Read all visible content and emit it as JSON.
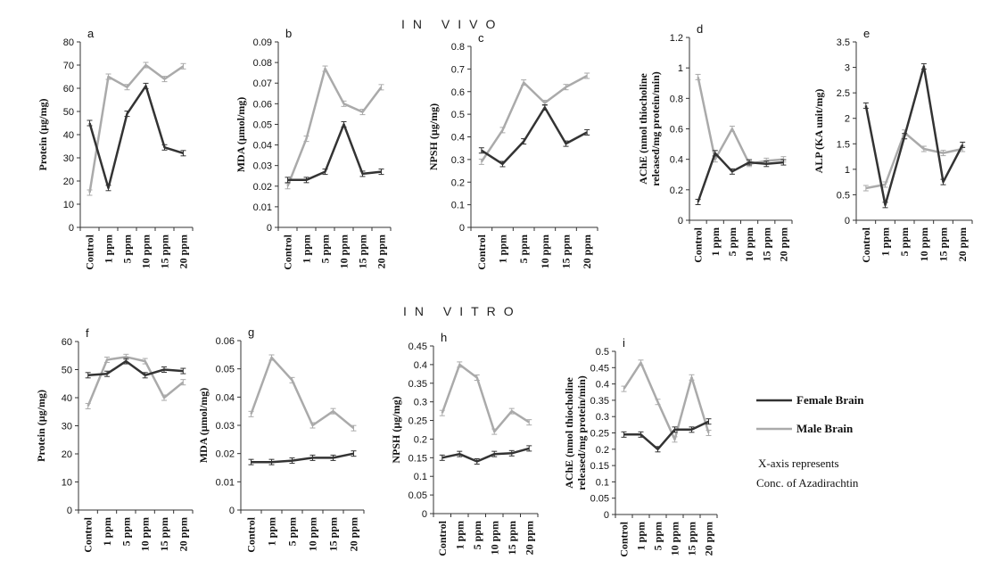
{
  "sections": {
    "in_vivo": "IN VIVO",
    "in_vitro": "IN VITRO"
  },
  "legend": {
    "female": "Female Brain",
    "male": "Male Brain",
    "female_color": "#333333",
    "male_color": "#aaaaaa"
  },
  "note": {
    "line1": "X-axis represents",
    "line2": "Conc. of Azadirachtin"
  },
  "chart_data": [
    {
      "id": "a",
      "panel": "a",
      "type": "line",
      "ylabel": "Protein (µg/mg)",
      "yticks": [
        "0",
        "10",
        "20",
        "30",
        "40",
        "50",
        "60",
        "70",
        "80"
      ],
      "ylim": [
        0,
        80
      ],
      "categories": [
        "Control",
        "1 ppm",
        "5 ppm",
        "10 ppm",
        "15 ppm",
        "20 ppm"
      ],
      "series": [
        {
          "name": "Female Brain",
          "values": [
            45,
            17,
            49,
            61,
            34.5,
            32
          ]
        },
        {
          "name": "Male Brain",
          "values": [
            15,
            65,
            60.5,
            70,
            64,
            69.5
          ]
        }
      ]
    },
    {
      "id": "b",
      "panel": "b",
      "type": "line",
      "ylabel": "MDA (µmol/mg)",
      "yticks": [
        "0",
        "0.01",
        "0.02",
        "0.03",
        "0.04",
        "0.05",
        "0.06",
        "0.07",
        "0.08",
        "0.09"
      ],
      "ylim": [
        0,
        0.09
      ],
      "categories": [
        "Control",
        "1 ppm",
        "5 ppm",
        "10 ppm",
        "15 ppm",
        "20 ppm"
      ],
      "series": [
        {
          "name": "Female Brain",
          "values": [
            0.023,
            0.023,
            0.027,
            0.05,
            0.026,
            0.027
          ]
        },
        {
          "name": "Male Brain",
          "values": [
            0.02,
            0.043,
            0.077,
            0.06,
            0.056,
            0.068
          ]
        }
      ]
    },
    {
      "id": "c",
      "panel": "c",
      "type": "line",
      "ylabel": "NPSH (µg/mg)",
      "yticks": [
        "0",
        "0.1",
        "0.2",
        "0.3",
        "0.4",
        "0.5",
        "0.6",
        "0.7",
        "0.8"
      ],
      "ylim": [
        0,
        0.8
      ],
      "categories": [
        "Control",
        "1 ppm",
        "5 ppm",
        "10 ppm",
        "15 ppm",
        "20 ppm"
      ],
      "series": [
        {
          "name": "Female Brain",
          "values": [
            0.34,
            0.28,
            0.38,
            0.53,
            0.37,
            0.42
          ]
        },
        {
          "name": "Male Brain",
          "values": [
            0.29,
            0.43,
            0.64,
            0.55,
            0.62,
            0.67
          ]
        }
      ]
    },
    {
      "id": "d",
      "panel": "d",
      "type": "line",
      "ylabel_line1": "AChE (nmol thiocholine",
      "ylabel_line2": "released/mg protein/min)",
      "yticks": [
        "0",
        "0.2",
        "0.4",
        "0.6",
        "0.8",
        "1",
        "1.2"
      ],
      "ylim": [
        0,
        1.2
      ],
      "categories": [
        "Control",
        "1 ppm",
        "5 ppm",
        "10 ppm",
        "15 ppm",
        "20 ppm"
      ],
      "series": [
        {
          "name": "Female Brain",
          "values": [
            0.12,
            0.44,
            0.32,
            0.38,
            0.37,
            0.38
          ]
        },
        {
          "name": "Male Brain",
          "values": [
            0.94,
            0.4,
            0.6,
            0.37,
            0.39,
            0.4
          ]
        }
      ]
    },
    {
      "id": "e",
      "panel": "e",
      "type": "line",
      "ylabel": "ALP (KA unit/mg)",
      "yticks": [
        "0",
        "0.5",
        "1",
        "1.5",
        "2",
        "2.5",
        "3",
        "3.5"
      ],
      "ylim": [
        0,
        3.5
      ],
      "categories": [
        "Control",
        "1 ppm",
        "5 ppm",
        "10 ppm",
        "15 ppm",
        "20 ppm"
      ],
      "series": [
        {
          "name": "Female Brain",
          "values": [
            2.25,
            0.3,
            1.65,
            3.02,
            0.75,
            1.48
          ]
        },
        {
          "name": "Male Brain",
          "values": [
            0.63,
            0.7,
            1.72,
            1.4,
            1.32,
            1.4
          ]
        }
      ]
    },
    {
      "id": "f",
      "panel": "f",
      "type": "line",
      "ylabel": "Protein (µg/mg)",
      "yticks": [
        "0",
        "10",
        "20",
        "30",
        "40",
        "50",
        "60"
      ],
      "ylim": [
        0,
        60
      ],
      "categories": [
        "Control",
        "1 ppm",
        "5 ppm",
        "10 ppm",
        "15 ppm",
        "20 ppm"
      ],
      "series": [
        {
          "name": "Female Brain",
          "values": [
            48,
            48.5,
            53,
            48,
            50,
            49.5
          ]
        },
        {
          "name": "Male Brain",
          "values": [
            37,
            53.5,
            54.5,
            53,
            40,
            45.5
          ]
        }
      ]
    },
    {
      "id": "g",
      "panel": "g",
      "type": "line",
      "ylabel": "MDA (µmol/mg)",
      "yticks": [
        "0",
        "0.01",
        "0.02",
        "0.03",
        "0.04",
        "0.05",
        "0.06"
      ],
      "ylim": [
        0,
        0.06
      ],
      "categories": [
        "Control",
        "1 ppm",
        "5 ppm",
        "10 ppm",
        "15 ppm",
        "20 ppm"
      ],
      "series": [
        {
          "name": "Female Brain",
          "values": [
            0.017,
            0.017,
            0.0175,
            0.0185,
            0.0185,
            0.02
          ]
        },
        {
          "name": "Male Brain",
          "values": [
            0.034,
            0.054,
            0.046,
            0.03,
            0.035,
            0.029
          ]
        }
      ]
    },
    {
      "id": "h",
      "panel": "h",
      "type": "line",
      "ylabel": "NPSH (µg/mg)",
      "yticks": [
        "0",
        "0.05",
        "0.1",
        "0.15",
        "0.2",
        "0.25",
        "0.3",
        "0.35",
        "0.4",
        "0.45"
      ],
      "ylim": [
        0,
        0.45
      ],
      "categories": [
        "Control",
        "1 ppm",
        "5 ppm",
        "10 ppm",
        "15 ppm",
        "20 ppm"
      ],
      "series": [
        {
          "name": "Female Brain",
          "values": [
            0.15,
            0.16,
            0.14,
            0.16,
            0.162,
            0.175
          ]
        },
        {
          "name": "Male Brain",
          "values": [
            0.27,
            0.4,
            0.365,
            0.22,
            0.275,
            0.245
          ]
        }
      ]
    },
    {
      "id": "i",
      "panel": "i",
      "type": "line",
      "ylabel_line1": "AChE (nmol thiocholine",
      "ylabel_line2": "released/mg protein/min)",
      "yticks": [
        "0",
        "0.05",
        "0.1",
        "0.15",
        "0.2",
        "0.25",
        "0.3",
        "0.35",
        "0.4",
        "0.45",
        "0.5"
      ],
      "ylim": [
        0,
        0.5
      ],
      "categories": [
        "Control",
        "1 ppm",
        "5 ppm",
        "10 ppm",
        "15 ppm",
        "20 ppm"
      ],
      "series": [
        {
          "name": "Female Brain",
          "values": [
            0.245,
            0.245,
            0.2,
            0.26,
            0.26,
            0.285
          ]
        },
        {
          "name": "Male Brain",
          "values": [
            0.385,
            0.465,
            0.345,
            0.23,
            0.42,
            0.25
          ]
        }
      ]
    }
  ]
}
